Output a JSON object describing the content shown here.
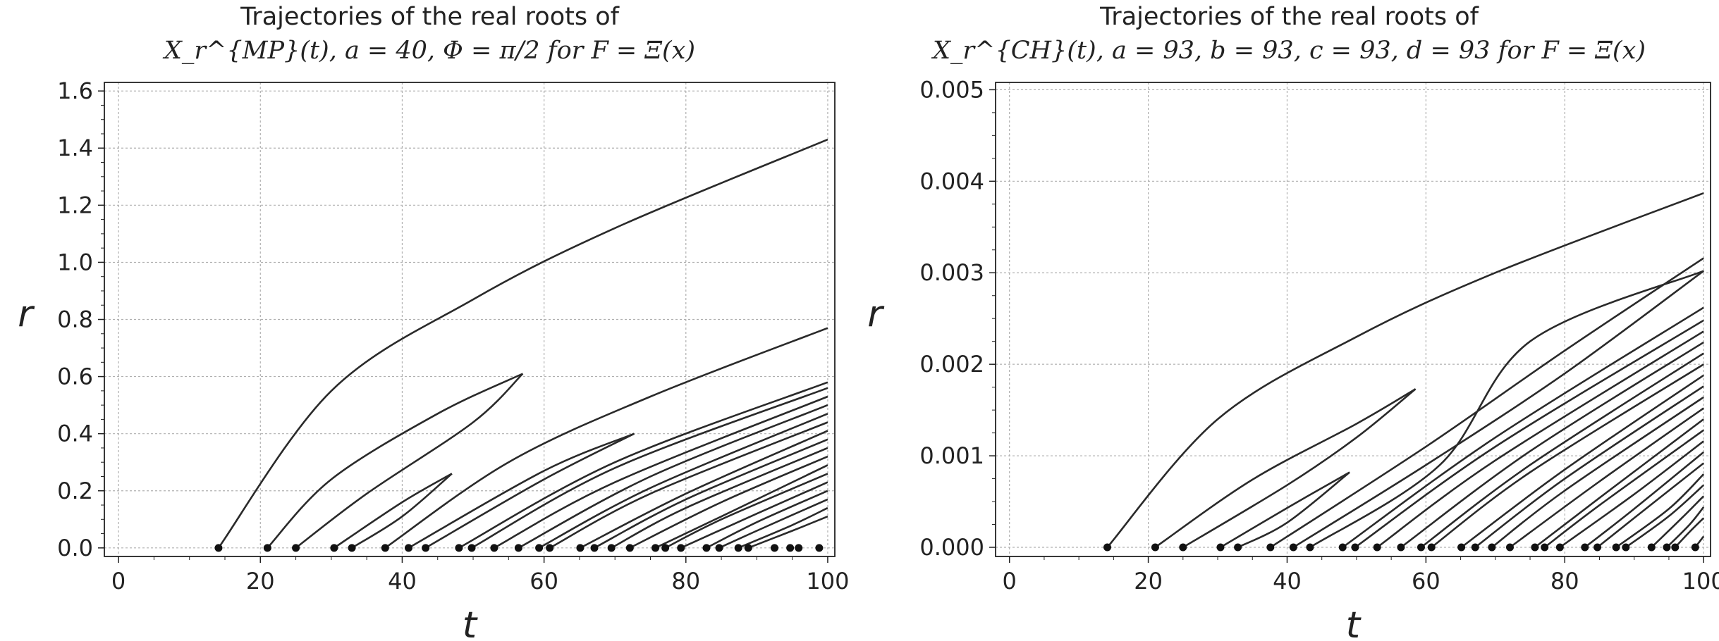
{
  "chart_data": [
    {
      "type": "line",
      "title": "Trajectories of the real roots of",
      "subtitle": "X_r^{MP}(t), a = 40, Φ = π/2 for F = Ξ(x)",
      "xlabel": "t",
      "ylabel": "r",
      "xlim": [
        -2,
        101
      ],
      "ylim": [
        -0.03,
        1.63
      ],
      "xticks": [
        "0",
        "20",
        "40",
        "60",
        "80",
        "100"
      ],
      "yticks": [
        "0.0",
        "0.2",
        "0.4",
        "0.6",
        "0.8",
        "1.0",
        "1.2",
        "1.4",
        "1.6"
      ],
      "grid": true,
      "start_points_t": [
        14.1,
        21.0,
        25.0,
        30.4,
        32.9,
        37.6,
        40.9,
        43.3,
        48.0,
        49.8,
        52.97,
        56.4,
        59.3,
        60.8,
        65.1,
        67.1,
        69.5,
        72.1,
        75.7,
        77.1,
        79.3,
        82.9,
        84.7,
        87.4,
        88.8,
        92.5,
        94.7,
        95.9,
        98.8
      ],
      "series": [
        {
          "x": [
            14.1,
            30,
            50,
            70,
            100
          ],
          "y": [
            0,
            0.55,
            0.87,
            1.12,
            1.43
          ]
        },
        {
          "x": [
            21.0,
            30,
            45,
            57
          ],
          "y": [
            0,
            0.24,
            0.47,
            0.61
          ]
        },
        {
          "x": [
            25.0,
            35,
            50,
            57
          ],
          "y": [
            0,
            0.19,
            0.44,
            0.61
          ]
        },
        {
          "x": [
            30.4,
            40,
            47
          ],
          "y": [
            0,
            0.16,
            0.26
          ]
        },
        {
          "x": [
            32.9,
            40,
            47
          ],
          "y": [
            0,
            0.11,
            0.26
          ]
        },
        {
          "x": [
            37.6,
            55,
            75,
            100
          ],
          "y": [
            0,
            0.3,
            0.53,
            0.77
          ]
        },
        {
          "x": [
            40.9,
            60,
            72.7
          ],
          "y": [
            0,
            0.27,
            0.4
          ]
        },
        {
          "x": [
            43.3,
            60,
            72.7
          ],
          "y": [
            0,
            0.24,
            0.4
          ]
        },
        {
          "x": [
            48.0,
            70,
            100
          ],
          "y": [
            0,
            0.3,
            0.58
          ]
        },
        {
          "x": [
            49.8,
            70,
            100
          ],
          "y": [
            0,
            0.28,
            0.56
          ]
        },
        {
          "x": [
            52.97,
            70,
            100
          ],
          "y": [
            0,
            0.23,
            0.53
          ]
        },
        {
          "x": [
            56.4,
            75,
            100
          ],
          "y": [
            0,
            0.25,
            0.5
          ]
        },
        {
          "x": [
            59.3,
            75,
            100
          ],
          "y": [
            0,
            0.21,
            0.47
          ]
        },
        {
          "x": [
            60.8,
            75,
            100
          ],
          "y": [
            0,
            0.19,
            0.44
          ]
        },
        {
          "x": [
            65.1,
            80,
            100
          ],
          "y": [
            0,
            0.19,
            0.41
          ]
        },
        {
          "x": [
            67.1,
            80,
            100
          ],
          "y": [
            0,
            0.17,
            0.38
          ]
        },
        {
          "x": [
            69.5,
            80,
            100
          ],
          "y": [
            0,
            0.14,
            0.35
          ]
        },
        {
          "x": [
            72.1,
            85,
            100
          ],
          "y": [
            0,
            0.16,
            0.32
          ]
        },
        {
          "x": [
            75.7,
            85,
            100
          ],
          "y": [
            0,
            0.11,
            0.29
          ]
        },
        {
          "x": [
            77.1,
            85,
            100
          ],
          "y": [
            0,
            0.1,
            0.26
          ]
        },
        {
          "x": [
            79.3,
            90,
            100
          ],
          "y": [
            0,
            0.12,
            0.23
          ]
        },
        {
          "x": [
            82.9,
            90,
            100
          ],
          "y": [
            0,
            0.09,
            0.2
          ]
        },
        {
          "x": [
            84.7,
            90,
            100
          ],
          "y": [
            0,
            0.06,
            0.17
          ]
        },
        {
          "x": [
            87.4,
            95,
            100
          ],
          "y": [
            0,
            0.08,
            0.14
          ]
        },
        {
          "x": [
            88.8,
            95,
            100
          ],
          "y": [
            0,
            0.06,
            0.11
          ]
        }
      ]
    },
    {
      "type": "line",
      "title": "Trajectories of the real roots of",
      "subtitle": "X_r^{CH}(t), a = 93, b = 93, c = 93, d = 93 for F = Ξ(x)",
      "xlabel": "t",
      "ylabel": "r",
      "xlim": [
        -2,
        101
      ],
      "ylim": [
        -0.0001,
        0.00508
      ],
      "xticks": [
        "0",
        "20",
        "40",
        "60",
        "80",
        "100"
      ],
      "yticks": [
        "0.000",
        "0.001",
        "0.002",
        "0.003",
        "0.004",
        "0.005"
      ],
      "grid": true,
      "start_points_t": [
        14.1,
        21.0,
        25.0,
        30.4,
        32.9,
        37.6,
        40.9,
        43.3,
        48.0,
        49.8,
        52.97,
        56.4,
        59.3,
        60.8,
        65.1,
        67.1,
        69.5,
        72.1,
        75.7,
        77.1,
        79.3,
        82.9,
        84.7,
        87.4,
        88.8,
        92.5,
        94.7,
        95.9,
        98.8
      ],
      "series": [
        {
          "x": [
            14.1,
            30,
            50,
            70,
            100
          ],
          "y": [
            0,
            0.0014,
            0.0023,
            0.003,
            0.00387
          ]
        },
        {
          "x": [
            21.0,
            35,
            50,
            58.5
          ],
          "y": [
            0,
            0.00074,
            0.00135,
            0.00173
          ]
        },
        {
          "x": [
            25.0,
            40,
            50,
            58.5
          ],
          "y": [
            0,
            0.00068,
            0.0012,
            0.00173
          ]
        },
        {
          "x": [
            30.4,
            40,
            49
          ],
          "y": [
            0,
            0.00043,
            0.00082
          ]
        },
        {
          "x": [
            32.9,
            40,
            49
          ],
          "y": [
            0,
            0.00027,
            0.00082
          ]
        },
        {
          "x": [
            37.6,
            60,
            80,
            100
          ],
          "y": [
            0,
            0.0011,
            0.00215,
            0.00316
          ]
        },
        {
          "x": [
            40.9,
            60,
            80,
            100
          ],
          "y": [
            0,
            0.0009,
            0.0019,
            0.00302
          ]
        },
        {
          "x": [
            43.3,
            62,
            75,
            100
          ],
          "y": [
            0,
            0.0009,
            0.00225,
            0.00302
          ]
        },
        {
          "x": [
            48.0,
            70,
            100
          ],
          "y": [
            0,
            0.0012,
            0.00262
          ]
        },
        {
          "x": [
            49.8,
            70,
            100
          ],
          "y": [
            0,
            0.0011,
            0.00248
          ]
        },
        {
          "x": [
            52.97,
            70,
            100
          ],
          "y": [
            0,
            0.00095,
            0.00236
          ]
        },
        {
          "x": [
            56.4,
            75,
            100
          ],
          "y": [
            0,
            0.00105,
            0.00224
          ]
        },
        {
          "x": [
            59.3,
            75,
            100
          ],
          "y": [
            0,
            0.0009,
            0.00212
          ]
        },
        {
          "x": [
            60.8,
            75,
            100
          ],
          "y": [
            0,
            0.00082,
            0.002
          ]
        },
        {
          "x": [
            65.1,
            80,
            100
          ],
          "y": [
            0,
            0.00085,
            0.00188
          ]
        },
        {
          "x": [
            67.1,
            80,
            100
          ],
          "y": [
            0,
            0.00075,
            0.00176
          ]
        },
        {
          "x": [
            69.5,
            80,
            100
          ],
          "y": [
            0,
            0.00062,
            0.00164
          ]
        },
        {
          "x": [
            72.1,
            85,
            100
          ],
          "y": [
            0,
            0.00072,
            0.00152
          ]
        },
        {
          "x": [
            75.7,
            85,
            100
          ],
          "y": [
            0,
            0.00054,
            0.0014
          ]
        },
        {
          "x": [
            77.1,
            85,
            100
          ],
          "y": [
            0,
            0.00046,
            0.00128
          ]
        },
        {
          "x": [
            79.3,
            90,
            100
          ],
          "y": [
            0,
            0.00058,
            0.00116
          ]
        },
        {
          "x": [
            82.9,
            90,
            100
          ],
          "y": [
            0,
            0.00042,
            0.00104
          ]
        },
        {
          "x": [
            84.7,
            90,
            100
          ],
          "y": [
            0,
            0.00032,
            0.00092
          ]
        },
        {
          "x": [
            87.4,
            95,
            100
          ],
          "y": [
            0,
            0.00042,
            0.0008
          ]
        },
        {
          "x": [
            88.8,
            95,
            100
          ],
          "y": [
            0,
            0.00034,
            0.00068
          ]
        },
        {
          "x": [
            92.5,
            97,
            100
          ],
          "y": [
            0,
            0.00033,
            0.00056
          ]
        },
        {
          "x": [
            94.7,
            98,
            100
          ],
          "y": [
            0,
            0.00025,
            0.00044
          ]
        },
        {
          "x": [
            95.9,
            98,
            100
          ],
          "y": [
            0,
            0.00017,
            0.00032
          ]
        },
        {
          "x": [
            98.8,
            100
          ],
          "y": [
            0,
            0.00012
          ]
        }
      ]
    }
  ]
}
